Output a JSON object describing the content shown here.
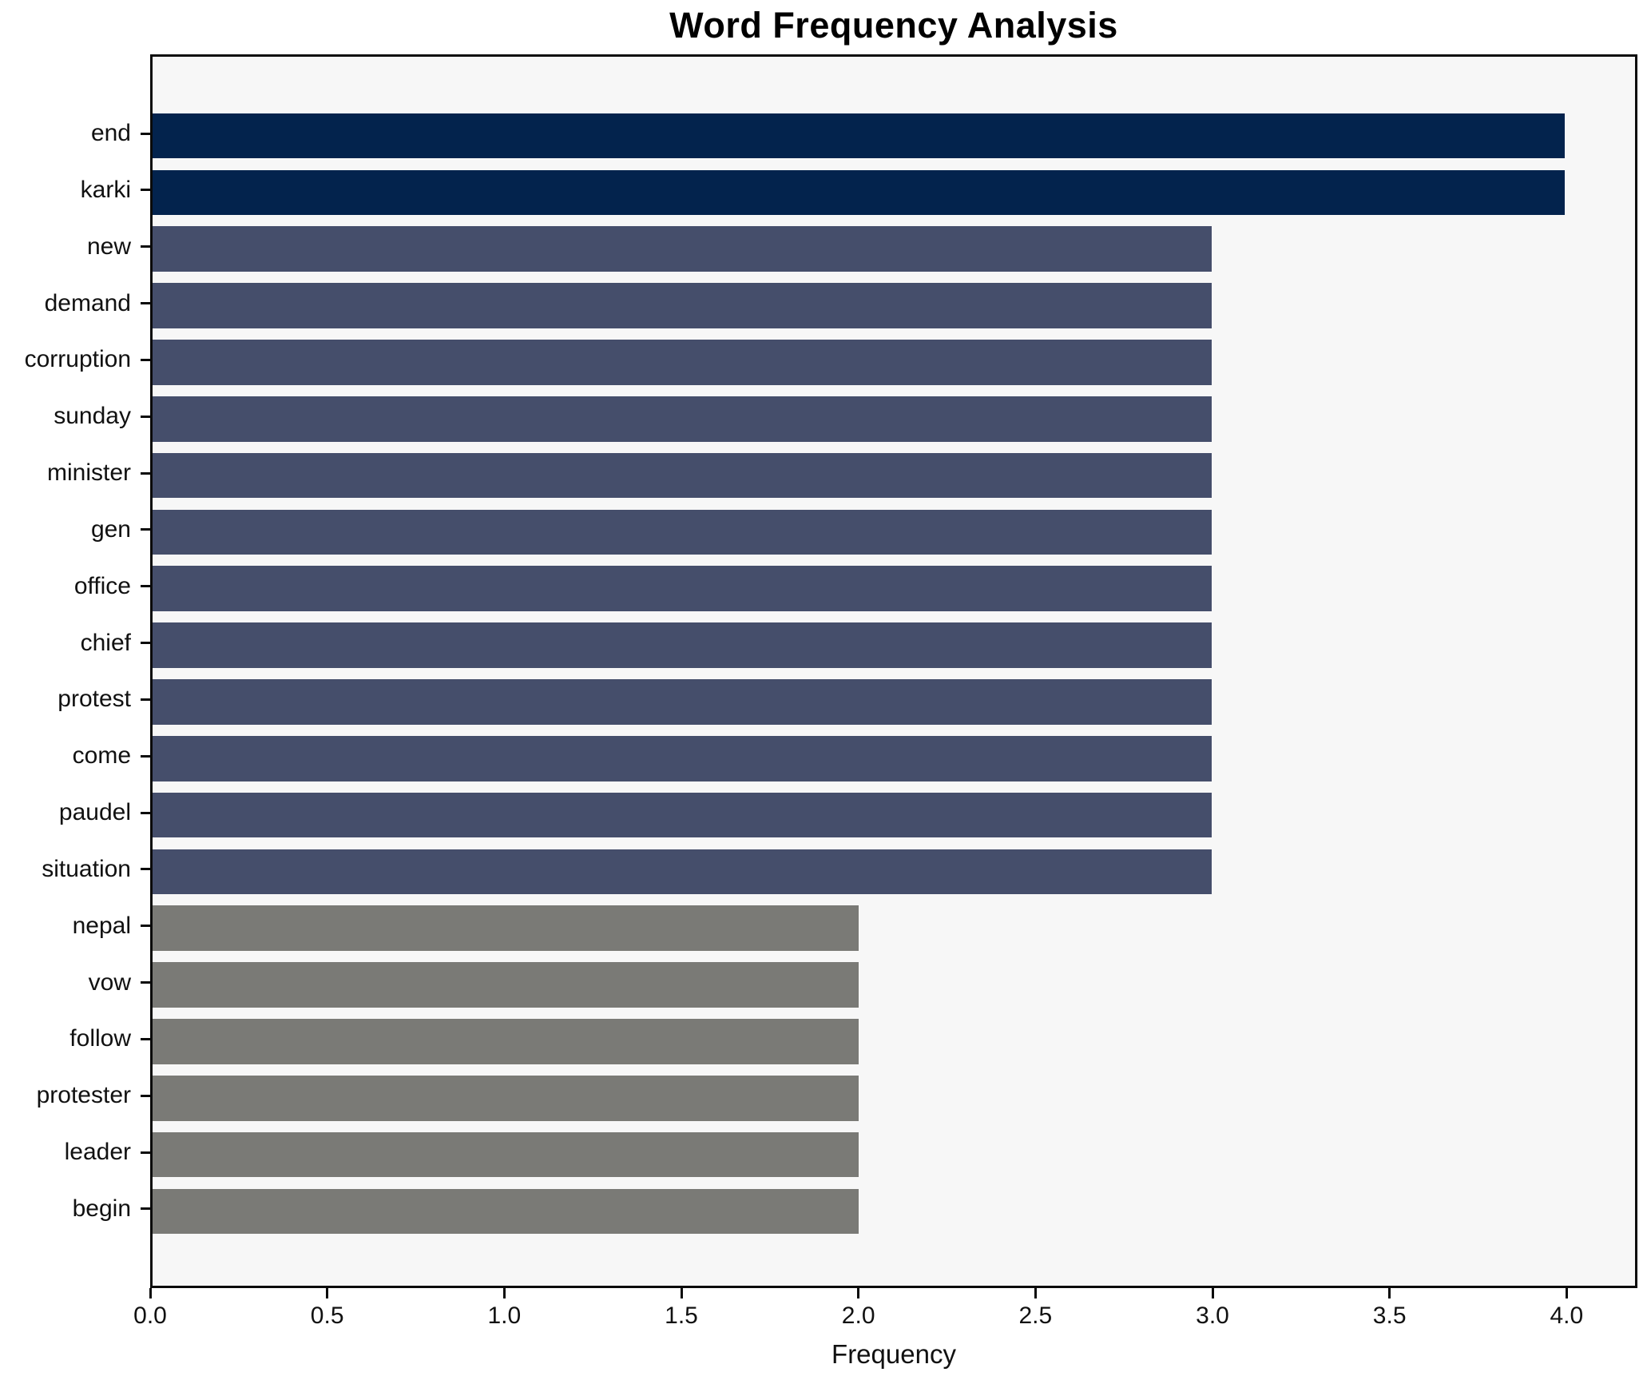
{
  "chart_data": {
    "type": "bar",
    "orientation": "horizontal",
    "title": "Word Frequency Analysis",
    "xlabel": "Frequency",
    "ylabel": "",
    "categories": [
      "end",
      "karki",
      "new",
      "demand",
      "corruption",
      "sunday",
      "minister",
      "gen",
      "office",
      "chief",
      "protest",
      "come",
      "paudel",
      "situation",
      "nepal",
      "vow",
      "follow",
      "protester",
      "leader",
      "begin"
    ],
    "values": [
      4,
      4,
      3,
      3,
      3,
      3,
      3,
      3,
      3,
      3,
      3,
      3,
      3,
      3,
      2,
      2,
      2,
      2,
      2,
      2
    ],
    "bar_colors": [
      "#03234d",
      "#03234d",
      "#454e6b",
      "#454e6b",
      "#454e6b",
      "#454e6b",
      "#454e6b",
      "#454e6b",
      "#454e6b",
      "#454e6b",
      "#454e6b",
      "#454e6b",
      "#454e6b",
      "#454e6b",
      "#7a7a76",
      "#7a7a76",
      "#7a7a76",
      "#7a7a76",
      "#7a7a76",
      "#7a7a76"
    ],
    "xlim": [
      0,
      4.2
    ],
    "xticks": [
      "0.0",
      "0.5",
      "1.0",
      "1.5",
      "2.0",
      "2.5",
      "3.0",
      "3.5",
      "4.0"
    ],
    "grid": false,
    "legend": "none",
    "colors": {
      "value_4": "#03234d",
      "value_3": "#454e6b",
      "value_2": "#7a7a76",
      "plot_background": "#f7f7f7",
      "figure_background": "#ffffff",
      "frame": "#0a0a0a",
      "text": "#111111"
    }
  }
}
